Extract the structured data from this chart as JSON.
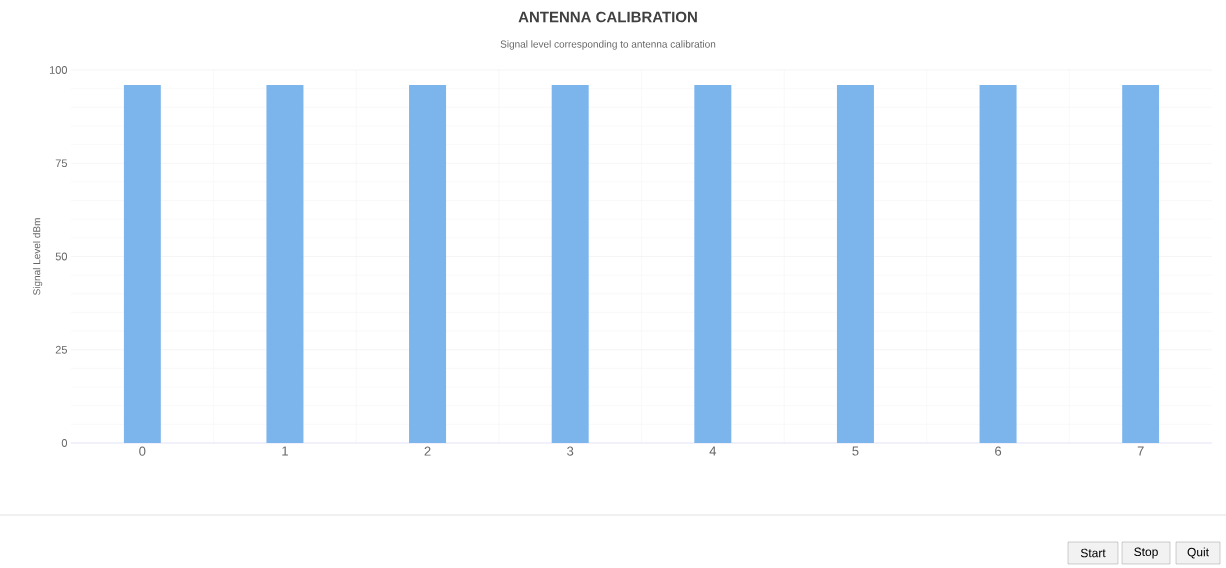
{
  "chart_data": {
    "type": "bar",
    "title": "ANTENNA CALIBRATION",
    "subtitle": "Signal level corresponding to antenna calibration",
    "ylabel": "Signal Level dBm",
    "categories": [
      "0",
      "1",
      "2",
      "3",
      "4",
      "5",
      "6",
      "7"
    ],
    "values": [
      96,
      96,
      96,
      96,
      96,
      96,
      96,
      96
    ],
    "color": "#7cb5ec",
    "ylim": [
      0,
      100
    ],
    "yticks": [
      0,
      25,
      50,
      75,
      100
    ],
    "grid": true,
    "annotations": [
      "Start",
      "Stop",
      "Quit"
    ]
  }
}
